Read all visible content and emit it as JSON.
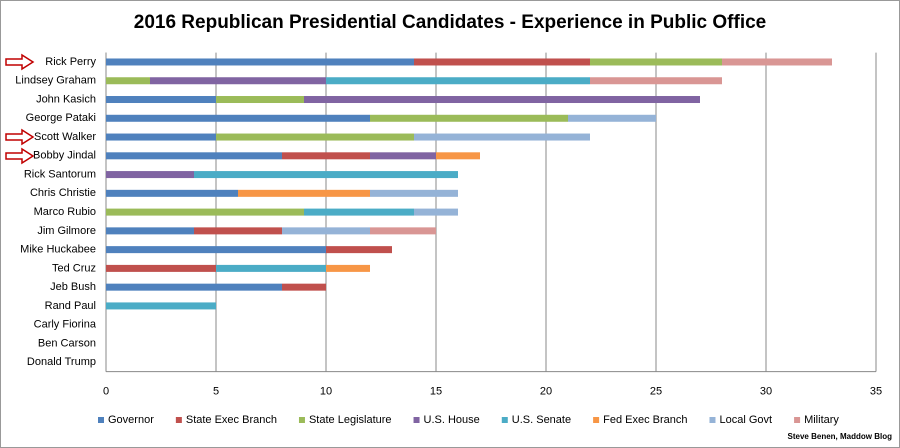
{
  "chart_data": {
    "type": "stacked-bar-horizontal",
    "title": "2016 Republican Presidential Candidates - Experience in Public Office",
    "categories": [
      "Rick Perry",
      "Lindsey Graham",
      "John Kasich",
      "George Pataki",
      "Scott Walker",
      "Bobby Jindal",
      "Rick Santorum",
      "Chris Christie",
      "Marco Rubio",
      "Jim Gilmore",
      "Mike Huckabee",
      "Ted Cruz",
      "Jeb Bush",
      "Rand Paul",
      "Carly Fiorina",
      "Ben Carson",
      "Donald Trump"
    ],
    "series": [
      {
        "name": "Governor",
        "color": "#4f81bd",
        "values": [
          14,
          0,
          5,
          12,
          5,
          8,
          0,
          6,
          0,
          4,
          10,
          0,
          8,
          0,
          0,
          0,
          0
        ]
      },
      {
        "name": "State Exec Branch",
        "color": "#c0504d",
        "values": [
          8,
          0,
          0,
          0,
          0,
          4,
          0,
          0,
          0,
          4,
          3,
          5,
          2,
          0,
          0,
          0,
          0
        ]
      },
      {
        "name": "State Legislature",
        "color": "#9bbb59",
        "values": [
          6,
          2,
          4,
          9,
          9,
          0,
          0,
          0,
          9,
          0,
          0,
          0,
          0,
          0,
          0,
          0,
          0
        ]
      },
      {
        "name": "U.S. House",
        "color": "#8064a2",
        "values": [
          0,
          8,
          18,
          0,
          0,
          3,
          4,
          0,
          0,
          0,
          0,
          0,
          0,
          0,
          0,
          0,
          0
        ]
      },
      {
        "name": "U.S. Senate",
        "color": "#4bacc6",
        "values": [
          0,
          12,
          0,
          0,
          0,
          0,
          12,
          0,
          5,
          0,
          0,
          5,
          0,
          5,
          0,
          0,
          0
        ]
      },
      {
        "name": "Fed Exec Branch",
        "color": "#f79646",
        "values": [
          0,
          0,
          0,
          0,
          0,
          2,
          0,
          6,
          0,
          0,
          0,
          2,
          0,
          0,
          0,
          0,
          0
        ]
      },
      {
        "name": "Local Govt",
        "color": "#95b3d7",
        "values": [
          0,
          0,
          0,
          4,
          8,
          0,
          0,
          4,
          2,
          4,
          0,
          0,
          0,
          0,
          0,
          0,
          0
        ]
      },
      {
        "name": "Military",
        "color": "#d99694",
        "values": [
          5,
          6,
          0,
          0,
          0,
          0,
          0,
          0,
          0,
          3,
          0,
          0,
          0,
          0,
          0,
          0,
          0
        ]
      }
    ],
    "xlim": [
      0,
      35
    ],
    "xticks": [
      0,
      5,
      10,
      15,
      20,
      25,
      30,
      35
    ],
    "grid": true,
    "legend": "bottom",
    "credit": "Steve Benen, Maddow Blog"
  }
}
